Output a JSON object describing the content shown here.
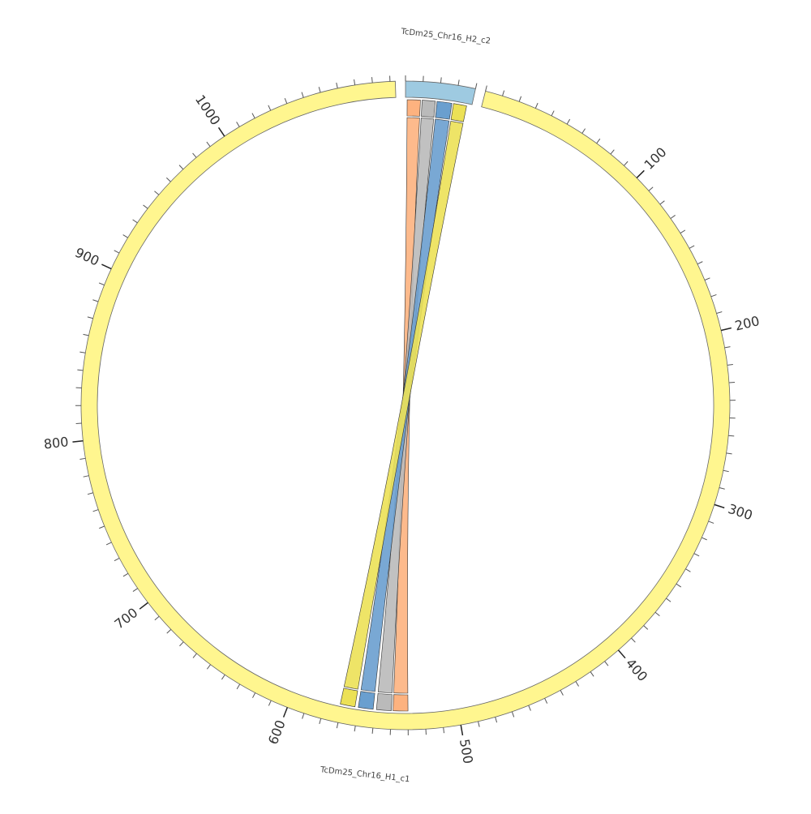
{
  "chart_data": {
    "type": "circos",
    "segments": [
      {
        "name": "TcDm25_Chr16_H2_c2",
        "color": "#9ecae1",
        "length": 40,
        "ticks": [
          0,
          10,
          20,
          30,
          40
        ],
        "tick_labels": []
      },
      {
        "name": "TcDm25_Chr16_H1_c1",
        "color": "#fff68f",
        "length": 1103,
        "ticks": [
          0,
          10,
          20,
          30,
          40,
          50,
          60,
          70,
          80,
          90,
          100,
          110,
          120,
          130,
          140,
          150,
          160,
          170,
          180,
          190,
          200,
          210,
          220,
          230,
          240,
          250,
          260,
          270,
          280,
          290,
          300,
          310,
          320,
          330,
          340,
          350,
          360,
          370,
          380,
          390,
          400,
          410,
          420,
          430,
          440,
          450,
          460,
          470,
          480,
          490,
          500,
          510,
          520,
          530,
          540,
          550,
          560,
          570,
          580,
          590,
          600,
          610,
          620,
          630,
          640,
          650,
          660,
          670,
          680,
          690,
          700,
          710,
          720,
          730,
          740,
          750,
          760,
          770,
          780,
          790,
          800,
          810,
          820,
          830,
          840,
          850,
          860,
          870,
          880,
          890,
          900,
          910,
          920,
          930,
          940,
          950,
          960,
          970,
          980,
          990,
          1000,
          1010,
          1020,
          1030,
          1040,
          1050,
          1060,
          1070,
          1080,
          1090,
          1100
        ],
        "tick_labels": [
          100,
          200,
          300,
          400,
          500,
          600,
          700,
          800,
          900,
          1000
        ]
      }
    ],
    "links": [
      {
        "color": "#fdb27f",
        "source": [
          1,
          9
        ],
        "target": [
          530,
          539
        ]
      },
      {
        "color": "#bababa",
        "source": [
          10,
          18
        ],
        "target": [
          540,
          549
        ]
      },
      {
        "color": "#6a9fcf",
        "source": [
          19,
          28
        ],
        "target": [
          551,
          560
        ]
      },
      {
        "color": "#ece156",
        "source": [
          29,
          37
        ],
        "target": [
          562,
          571
        ]
      }
    ]
  }
}
